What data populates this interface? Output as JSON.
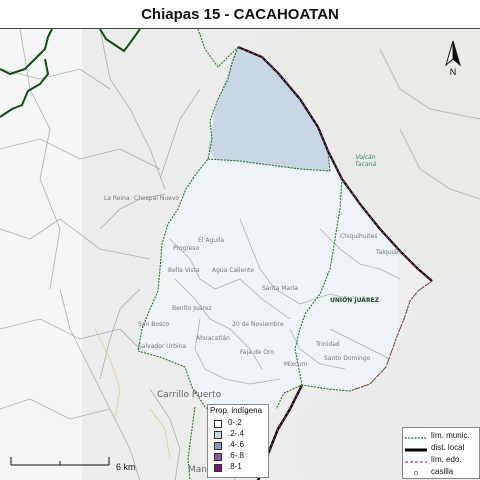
{
  "title": "Chiapas 15 - CACAHOATAN",
  "colors": {
    "district_fill": "#eef3f8",
    "highlight_fill": "#c9d6e6",
    "muni_border": "#1c7a1c",
    "district_border": "#000000",
    "state_border": "#b03a6a",
    "base_bg": "#e8e8e8"
  },
  "places": [
    "La Reina",
    "Chespal Nuevo",
    "Progreso",
    "El Aguila",
    "Ojo de Agua",
    "Nueva Independencia",
    "Santo Domingo",
    "Agua Caliente",
    "Berlin",
    "Rosario Izapa",
    "Union Juarez",
    "Chiquihuites",
    "Talquian",
    "Trinidad",
    "Carrillo Puerto",
    "El Triunfo",
    "San Jose Nexapa",
    "Benito Juarez",
    "Zona Cafetalera",
    "Mexico",
    "Ahuacatlan",
    "Salvador Urbina",
    "Los Cerritos",
    "Manuel Lazos",
    "Volcan Tacana"
  ],
  "map_labels": {
    "volcan": "Volcán\nTacaná",
    "la_reina": "La Reina",
    "chespal": "Chespal Nuevo",
    "progreso": "Progreso",
    "el_aguila": "El Aguila",
    "bella_vista": "Bella Vista",
    "agua_caliente": "Agua Caliente",
    "santa_maria": "Santa María",
    "benito_juarez": "Benito Juárez",
    "veinte_nov": "20 de Noviembre",
    "salvador_urbina": "Salvador Urbina",
    "ahuacatlan": "Ahuacatlán",
    "faja_de_oro": "Faja de Oro",
    "mixcum": "Mixcum",
    "chiquihuites": "Chiquihuites",
    "talquian": "Talquián",
    "union_juarez": "UNIÓN JUÁREZ",
    "trinidad": "Trinidad",
    "santo_domingo": "Santo Domingo",
    "carrillo_puerto": "Carrillo Puerto",
    "san_bosco": "San Bosco",
    "manuel_lazos": "Manuel Lazos"
  },
  "north_label": "N",
  "scale_label": "6 km",
  "legend_prop": {
    "title": "Prop. indígena",
    "items": [
      {
        "label": "0-.2",
        "color": "#ffffff"
      },
      {
        "label": ".2-.4",
        "color": "#c9d6e6"
      },
      {
        "label": ".4-.6",
        "color": "#8c96c6"
      },
      {
        "label": ".6-.8",
        "color": "#8856a7"
      },
      {
        "label": ".8-1",
        "color": "#810f7c"
      }
    ]
  },
  "legend_lines": {
    "items": [
      {
        "label": "lím. munic.",
        "style": "muni"
      },
      {
        "label": "dist. local",
        "style": "dist"
      },
      {
        "label": "lím. edo.",
        "style": "edo"
      },
      {
        "label": "casilla",
        "style": "casilla"
      }
    ]
  }
}
